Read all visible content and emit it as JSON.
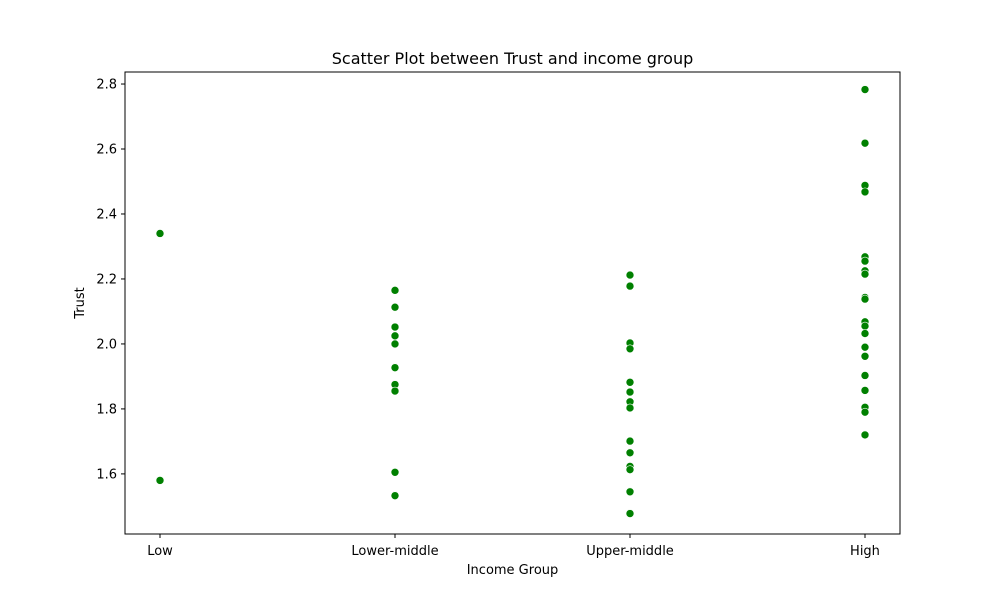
{
  "chart_data": {
    "type": "scatter",
    "title": "Scatter Plot between Trust and income group",
    "xlabel": "Income Group",
    "ylabel": "Trust",
    "categories": [
      "Low",
      "Lower-middle",
      "Upper-middle",
      "High"
    ],
    "ylim": [
      1.415,
      2.837
    ],
    "yticks": [
      1.6,
      1.8,
      2.0,
      2.2,
      2.4,
      2.6,
      2.8
    ],
    "ytick_labels": [
      "1.6",
      "1.8",
      "2.0",
      "2.2",
      "2.4",
      "2.6",
      "2.8"
    ],
    "grid": false,
    "legend": "none",
    "marker_color": "#008000",
    "points": [
      {
        "category": "Low",
        "values": [
          2.34,
          1.58
        ]
      },
      {
        "category": "Lower-middle",
        "values": [
          2.165,
          2.113,
          2.052,
          2.025,
          2.0,
          1.927,
          1.875,
          1.855,
          1.605,
          1.533
        ]
      },
      {
        "category": "Upper-middle",
        "values": [
          2.212,
          2.178,
          2.003,
          1.985,
          1.882,
          1.852,
          1.822,
          1.803,
          1.701,
          1.665,
          1.623,
          1.613,
          1.545,
          1.478
        ]
      },
      {
        "category": "High",
        "values": [
          2.783,
          2.618,
          2.488,
          2.468,
          2.268,
          2.255,
          2.225,
          2.215,
          2.143,
          2.138,
          2.068,
          2.055,
          2.032,
          1.99,
          1.962,
          1.903,
          1.857,
          1.805,
          1.79,
          1.72
        ]
      }
    ]
  }
}
